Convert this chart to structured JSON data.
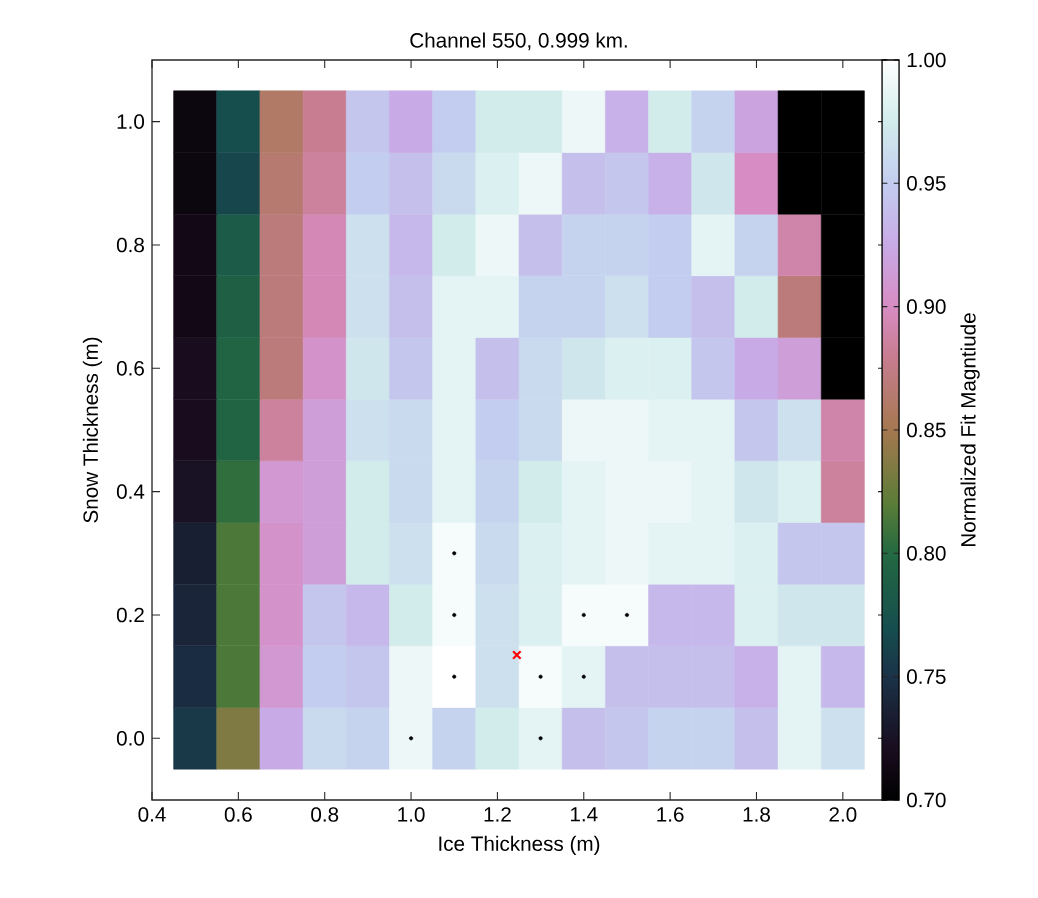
{
  "chart_data": {
    "type": "heatmap",
    "title": "Channel 550, 0.999 km.",
    "xlabel": "Ice Thickness (m)",
    "ylabel": "Snow Thickness (m)",
    "clabel": "Normalized Fit Magntiude",
    "x": [
      0.5,
      0.6,
      0.7,
      0.8,
      0.9,
      1.0,
      1.1,
      1.2,
      1.3,
      1.4,
      1.5,
      1.6,
      1.7,
      1.8,
      1.9,
      2.0
    ],
    "y": [
      1.0,
      0.9,
      0.8,
      0.7,
      0.6,
      0.5,
      0.4,
      0.3,
      0.2,
      0.1,
      0.0
    ],
    "cells": [
      [
        0.71,
        0.77,
        0.86,
        0.88,
        0.945,
        0.925,
        0.95,
        0.975,
        0.975,
        0.99,
        0.93,
        0.975,
        0.955,
        0.92,
        0.7,
        0.7
      ],
      [
        0.71,
        0.765,
        0.865,
        0.885,
        0.95,
        0.94,
        0.96,
        0.98,
        0.99,
        0.94,
        0.945,
        0.93,
        0.97,
        0.9,
        0.7,
        0.7
      ],
      [
        0.715,
        0.785,
        0.87,
        0.895,
        0.965,
        0.935,
        0.975,
        0.99,
        0.94,
        0.955,
        0.955,
        0.95,
        0.985,
        0.955,
        0.89,
        0.7
      ],
      [
        0.715,
        0.79,
        0.87,
        0.895,
        0.965,
        0.94,
        0.985,
        0.985,
        0.955,
        0.955,
        0.965,
        0.95,
        0.94,
        0.975,
        0.87,
        0.7
      ],
      [
        0.72,
        0.795,
        0.87,
        0.905,
        0.97,
        0.945,
        0.985,
        0.94,
        0.96,
        0.97,
        0.98,
        0.98,
        0.945,
        0.925,
        0.915,
        0.7
      ],
      [
        0.72,
        0.795,
        0.885,
        0.915,
        0.965,
        0.96,
        0.985,
        0.95,
        0.96,
        0.99,
        0.99,
        0.985,
        0.985,
        0.945,
        0.965,
        0.89
      ],
      [
        0.725,
        0.805,
        0.91,
        0.915,
        0.975,
        0.96,
        0.985,
        0.955,
        0.975,
        0.985,
        0.99,
        0.99,
        0.985,
        0.97,
        0.98,
        0.885
      ],
      [
        0.735,
        0.815,
        0.905,
        0.915,
        0.975,
        0.965,
        0.995,
        0.96,
        0.98,
        0.985,
        0.99,
        0.985,
        0.985,
        0.98,
        0.945,
        0.945
      ],
      [
        0.74,
        0.815,
        0.905,
        0.945,
        0.935,
        0.975,
        0.995,
        0.965,
        0.98,
        0.995,
        0.995,
        0.935,
        0.935,
        0.98,
        0.97,
        0.97
      ],
      [
        0.745,
        0.815,
        0.91,
        0.95,
        0.945,
        0.99,
        1.0,
        0.965,
        0.995,
        0.985,
        0.94,
        0.94,
        0.94,
        0.93,
        0.985,
        0.935
      ],
      [
        0.755,
        0.835,
        0.925,
        0.96,
        0.955,
        0.99,
        0.955,
        0.975,
        0.985,
        0.94,
        0.945,
        0.955,
        0.955,
        0.94,
        0.985,
        0.965
      ]
    ],
    "clim": [
      0.7,
      1.0
    ],
    "cticks": [
      {
        "value": 0.7,
        "label": "0.70"
      },
      {
        "value": 0.75,
        "label": "0.75"
      },
      {
        "value": 0.8,
        "label": "0.80"
      },
      {
        "value": 0.85,
        "label": "0.85"
      },
      {
        "value": 0.9,
        "label": "0.90"
      },
      {
        "value": 0.95,
        "label": "0.95"
      },
      {
        "value": 1.0,
        "label": "1.00"
      }
    ],
    "xlim": [
      0.4,
      2.1
    ],
    "xticks": [
      {
        "value": 0.4,
        "label": "0.4"
      },
      {
        "value": 0.6,
        "label": "0.6"
      },
      {
        "value": 0.8,
        "label": "0.8"
      },
      {
        "value": 1.0,
        "label": "1.0"
      },
      {
        "value": 1.2,
        "label": "1.2"
      },
      {
        "value": 1.4,
        "label": "1.4"
      },
      {
        "value": 1.6,
        "label": "1.6"
      },
      {
        "value": 1.8,
        "label": "1.8"
      },
      {
        "value": 2.0,
        "label": "2.0"
      }
    ],
    "ylim": [
      -0.1,
      1.1
    ],
    "yticks": [
      {
        "value": 0.0,
        "label": "0.0"
      },
      {
        "value": 0.2,
        "label": "0.2"
      },
      {
        "value": 0.4,
        "label": "0.4"
      },
      {
        "value": 0.6,
        "label": "0.6"
      },
      {
        "value": 0.8,
        "label": "0.8"
      },
      {
        "value": 1.0,
        "label": "1.0"
      }
    ],
    "series": [
      {
        "type": "scatter",
        "color": "#000000",
        "marker": "circle",
        "x": [
          1.1,
          1.1,
          1.4,
          1.5,
          1.1,
          1.3,
          1.4,
          1.0,
          1.3
        ],
        "values": [
          0.3,
          0.2,
          0.2,
          0.2,
          0.1,
          0.1,
          0.1,
          0.0,
          0.0
        ]
      },
      {
        "type": "scatter",
        "color": "#ff0000",
        "marker": "cross",
        "x": [
          1.245
        ],
        "values": [
          0.135
        ]
      }
    ]
  }
}
